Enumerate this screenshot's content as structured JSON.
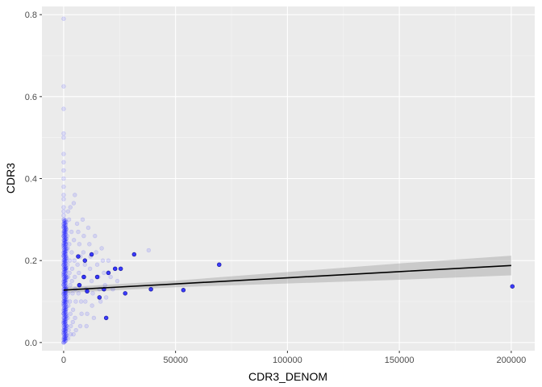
{
  "chart_data": {
    "type": "scatter",
    "title": "",
    "xlabel": "CDR3_DENOM",
    "ylabel": "CDR3",
    "xlim": [
      -9700,
      210500
    ],
    "ylim": [
      -0.02,
      0.82
    ],
    "x_ticks": [
      0,
      50000,
      100000,
      150000,
      200000
    ],
    "x_tick_labels": [
      "0",
      "50000",
      "100000",
      "150000",
      "200000"
    ],
    "y_ticks": [
      0.0,
      0.2,
      0.4,
      0.6,
      0.8
    ],
    "y_tick_labels": [
      "0.0",
      "0.2",
      "0.4",
      "0.6",
      "0.8"
    ],
    "grid": true,
    "background": "#ebebeb",
    "point_color": "#0000ff",
    "point_alpha": 0.1,
    "points": [
      [
        0,
        0.79
      ],
      [
        0,
        0.625
      ],
      [
        0,
        0.57
      ],
      [
        0,
        0.5
      ],
      [
        0,
        0.51
      ],
      [
        0,
        0.46
      ],
      [
        0,
        0.44
      ],
      [
        0,
        0.42
      ],
      [
        0,
        0.4
      ],
      [
        0,
        0.38
      ],
      [
        0,
        0.36
      ],
      [
        0,
        0.35
      ],
      [
        0,
        0.33
      ],
      [
        0,
        0.32
      ],
      [
        0,
        0.31
      ],
      [
        0,
        0.3
      ],
      [
        0,
        0.29
      ],
      [
        0,
        0.28
      ],
      [
        0,
        0.27
      ],
      [
        0,
        0.26
      ],
      [
        0,
        0.25
      ],
      [
        0,
        0.24
      ],
      [
        0,
        0.23
      ],
      [
        0,
        0.22
      ],
      [
        0,
        0.21
      ],
      [
        0,
        0.2
      ],
      [
        0,
        0.19
      ],
      [
        0,
        0.18
      ],
      [
        0,
        0.17
      ],
      [
        0,
        0.16
      ],
      [
        0,
        0.15
      ],
      [
        0,
        0.14
      ],
      [
        0,
        0.13
      ],
      [
        0,
        0.12
      ],
      [
        0,
        0.11
      ],
      [
        0,
        0.1
      ],
      [
        0,
        0.09
      ],
      [
        0,
        0.08
      ],
      [
        0,
        0.07
      ],
      [
        0,
        0.06
      ],
      [
        0,
        0.05
      ],
      [
        0,
        0.04
      ],
      [
        0,
        0.03
      ],
      [
        0,
        0.02
      ],
      [
        0,
        0.01
      ],
      [
        0,
        0.0
      ],
      [
        300,
        0.3
      ],
      [
        400,
        0.27
      ],
      [
        500,
        0.25
      ],
      [
        600,
        0.22
      ],
      [
        500,
        0.2
      ],
      [
        700,
        0.18
      ],
      [
        600,
        0.15
      ],
      [
        800,
        0.12
      ],
      [
        700,
        0.1
      ],
      [
        900,
        0.08
      ],
      [
        600,
        0.05
      ],
      [
        800,
        0.03
      ],
      [
        500,
        0.01
      ],
      [
        1000,
        0.28
      ],
      [
        1100,
        0.24
      ],
      [
        1200,
        0.21
      ],
      [
        1000,
        0.18
      ],
      [
        1300,
        0.16
      ],
      [
        1100,
        0.13
      ],
      [
        1400,
        0.1
      ],
      [
        1200,
        0.07
      ],
      [
        1500,
        0.04
      ],
      [
        1300,
        0.02
      ],
      [
        1600,
        0.26
      ],
      [
        1800,
        0.23
      ],
      [
        1700,
        0.19
      ],
      [
        2000,
        0.16
      ],
      [
        1900,
        0.12
      ],
      [
        2100,
        0.09
      ],
      [
        1800,
        0.06
      ],
      [
        2200,
        0.03
      ],
      [
        2000,
        0.01
      ],
      [
        2400,
        0.3
      ],
      [
        2500,
        0.24
      ],
      [
        2700,
        0.2
      ],
      [
        2600,
        0.17
      ],
      [
        2900,
        0.14
      ],
      [
        2800,
        0.1
      ],
      [
        3000,
        0.07
      ],
      [
        3200,
        0.04
      ],
      [
        3100,
        0.02
      ],
      [
        3500,
        0.27
      ],
      [
        3600,
        0.22
      ],
      [
        3800,
        0.18
      ],
      [
        3700,
        0.15
      ],
      [
        4000,
        0.12
      ],
      [
        4200,
        0.08
      ],
      [
        4100,
        0.05
      ],
      [
        4400,
        0.02
      ],
      [
        4600,
        0.25
      ],
      [
        4800,
        0.2
      ],
      [
        5000,
        0.16
      ],
      [
        5200,
        0.13
      ],
      [
        5400,
        0.1
      ],
      [
        5100,
        0.06
      ],
      [
        5500,
        0.03
      ],
      [
        5000,
        0.36
      ],
      [
        4500,
        0.34
      ],
      [
        3000,
        0.33
      ],
      [
        2000,
        0.32
      ],
      [
        6000,
        0.29
      ],
      [
        6500,
        0.27
      ],
      [
        7000,
        0.24
      ],
      [
        7500,
        0.21
      ],
      [
        6200,
        0.19
      ],
      [
        6800,
        0.17
      ],
      [
        7200,
        0.14
      ],
      [
        6600,
        0.12
      ],
      [
        7800,
        0.1
      ],
      [
        8000,
        0.07
      ],
      [
        7400,
        0.04
      ],
      [
        8500,
        0.3
      ],
      [
        9000,
        0.26
      ],
      [
        8800,
        0.22
      ],
      [
        9500,
        0.19
      ],
      [
        9200,
        0.16
      ],
      [
        10000,
        0.13
      ],
      [
        9700,
        0.1
      ],
      [
        10500,
        0.07
      ],
      [
        10200,
        0.04
      ],
      [
        11000,
        0.28
      ],
      [
        11500,
        0.24
      ],
      [
        12000,
        0.21
      ],
      [
        11800,
        0.18
      ],
      [
        12500,
        0.15
      ],
      [
        13000,
        0.12
      ],
      [
        12700,
        0.09
      ],
      [
        13500,
        0.06
      ],
      [
        14000,
        0.26
      ],
      [
        14500,
        0.22
      ],
      [
        15000,
        0.19
      ],
      [
        15500,
        0.16
      ],
      [
        16000,
        0.13
      ],
      [
        16500,
        0.1
      ],
      [
        17000,
        0.23
      ],
      [
        17500,
        0.2
      ],
      [
        18000,
        0.17
      ],
      [
        18500,
        0.14
      ],
      [
        19000,
        0.11
      ],
      [
        20000,
        0.2
      ],
      [
        21000,
        0.16
      ],
      [
        22000,
        0.13
      ],
      [
        23000,
        0.18
      ],
      [
        24000,
        0.15
      ],
      [
        38000,
        0.225
      ]
    ],
    "highlight_points": [
      [
        6500,
        0.21
      ],
      [
        7000,
        0.14
      ],
      [
        9000,
        0.16
      ],
      [
        9500,
        0.2
      ],
      [
        10500,
        0.125
      ],
      [
        12500,
        0.215
      ],
      [
        15000,
        0.16
      ],
      [
        16000,
        0.11
      ],
      [
        18000,
        0.13
      ],
      [
        19000,
        0.06
      ],
      [
        20000,
        0.17
      ],
      [
        23000,
        0.18
      ],
      [
        25500,
        0.18
      ],
      [
        27500,
        0.12
      ],
      [
        31500,
        0.215
      ],
      [
        39000,
        0.13
      ],
      [
        53500,
        0.128
      ],
      [
        69500,
        0.19
      ],
      [
        200500,
        0.137
      ]
    ],
    "trend_line": {
      "color": "#000000",
      "band_color": "#999999",
      "x": [
        0,
        50000,
        100000,
        150000,
        200000
      ],
      "y": [
        0.128,
        0.143,
        0.158,
        0.173,
        0.188
      ],
      "band_lower": [
        0.121,
        0.135,
        0.144,
        0.153,
        0.164
      ],
      "band_upper": [
        0.135,
        0.151,
        0.172,
        0.193,
        0.212
      ]
    }
  }
}
